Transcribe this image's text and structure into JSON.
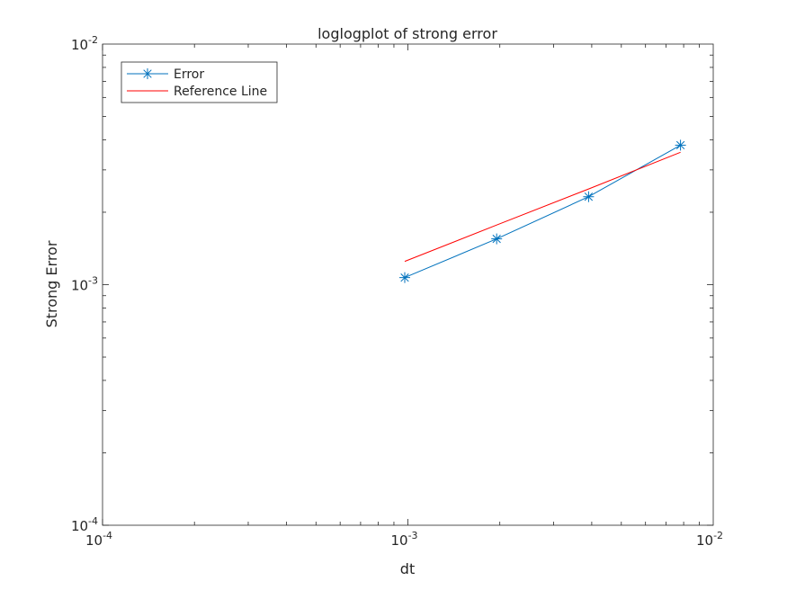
{
  "chart_data": {
    "type": "line",
    "title": "loglogplot of strong error",
    "xlabel": "dt",
    "ylabel": "Strong Error",
    "xscale": "log",
    "yscale": "log",
    "xlim": [
      0.0001,
      0.01
    ],
    "ylim": [
      0.0001,
      0.01
    ],
    "x_ticks": [
      {
        "value": 0.0001,
        "base": "10",
        "exp": "-4"
      },
      {
        "value": 0.001,
        "base": "10",
        "exp": "-3"
      },
      {
        "value": 0.01,
        "base": "10",
        "exp": "-2"
      }
    ],
    "y_ticks": [
      {
        "value": 0.0001,
        "base": "10",
        "exp": "-4"
      },
      {
        "value": 0.001,
        "base": "10",
        "exp": "-3"
      },
      {
        "value": 0.01,
        "base": "10",
        "exp": "-2"
      }
    ],
    "grid": false,
    "legend_position": "top-left",
    "series": [
      {
        "name": "Error",
        "color": "#0072BD",
        "marker": "asterisk",
        "x": [
          0.0009765625,
          0.001953125,
          0.00390625,
          0.0078125
        ],
        "y": [
          0.00107,
          0.00155,
          0.00232,
          0.0038
        ]
      },
      {
        "name": "Reference Line",
        "color": "#FF0000",
        "marker": "none",
        "x": [
          0.0009765625,
          0.001953125,
          0.00390625,
          0.0078125
        ],
        "y": [
          0.00125,
          0.00177,
          0.0025,
          0.00355
        ]
      }
    ]
  }
}
